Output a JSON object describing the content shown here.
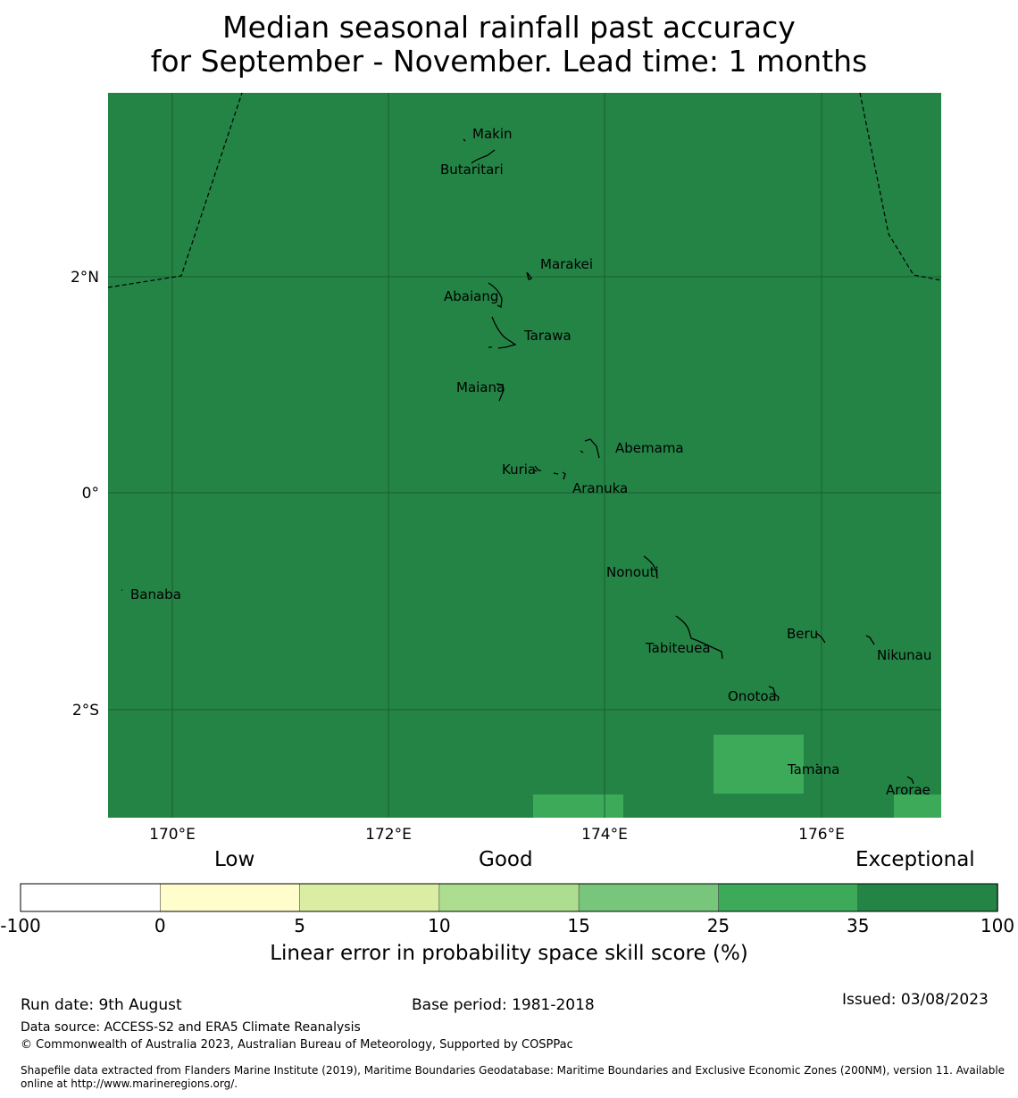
{
  "title": {
    "line1": "Median seasonal rainfall past accuracy",
    "line2": "for September - November. Lead time: 1 months"
  },
  "map": {
    "lat_ticks": [
      "2°N",
      "0°",
      "2°S"
    ],
    "lon_ticks": [
      "170°E",
      "172°E",
      "174°E",
      "176°E"
    ],
    "background_color": "#248446",
    "lighter_cell_color": "#3DAA5A",
    "islands": [
      "Makin",
      "Butaritari",
      "Marakei",
      "Abaiang",
      "Tarawa",
      "Maiana",
      "Abemama",
      "Kuria",
      "Aranuka",
      "Nonouti",
      "Banaba",
      "Tabiteuea",
      "Beru",
      "Nikunau",
      "Onotoa",
      "Tamana",
      "Arorae"
    ]
  },
  "colorbar": {
    "category_labels": [
      "Low",
      "Good",
      "Exceptional"
    ],
    "tick_labels": [
      "-100",
      "0",
      "5",
      "10",
      "15",
      "25",
      "35",
      "100"
    ],
    "colors": [
      "#FFFFFF",
      "#FFFDCC",
      "#DAEEA3",
      "#ADDE90",
      "#78C67B",
      "#3DAA5A",
      "#248446"
    ],
    "axis_label": "Linear error in probability space skill score (%)"
  },
  "footer": {
    "run_date": "Run date: 9th August",
    "base_period": "Base period: 1981-2018",
    "issued": "Issued: 03/08/2023",
    "data_source": "Data source: ACCESS-S2 and ERA5 Climate Reanalysis",
    "copyright": "© Commonwealth of Australia 2023, Australian Bureau of Meteorology, Supported by COSPPac",
    "shapefile_line1": "Shapefile data extracted from Flanders Marine Institute (2019), Maritime Boundaries Geodatabase: Maritime Boundaries and Exclusive Economic Zones (200NM), version 11. Available",
    "shapefile_line2": "online at http://www.marineregions.org/."
  }
}
